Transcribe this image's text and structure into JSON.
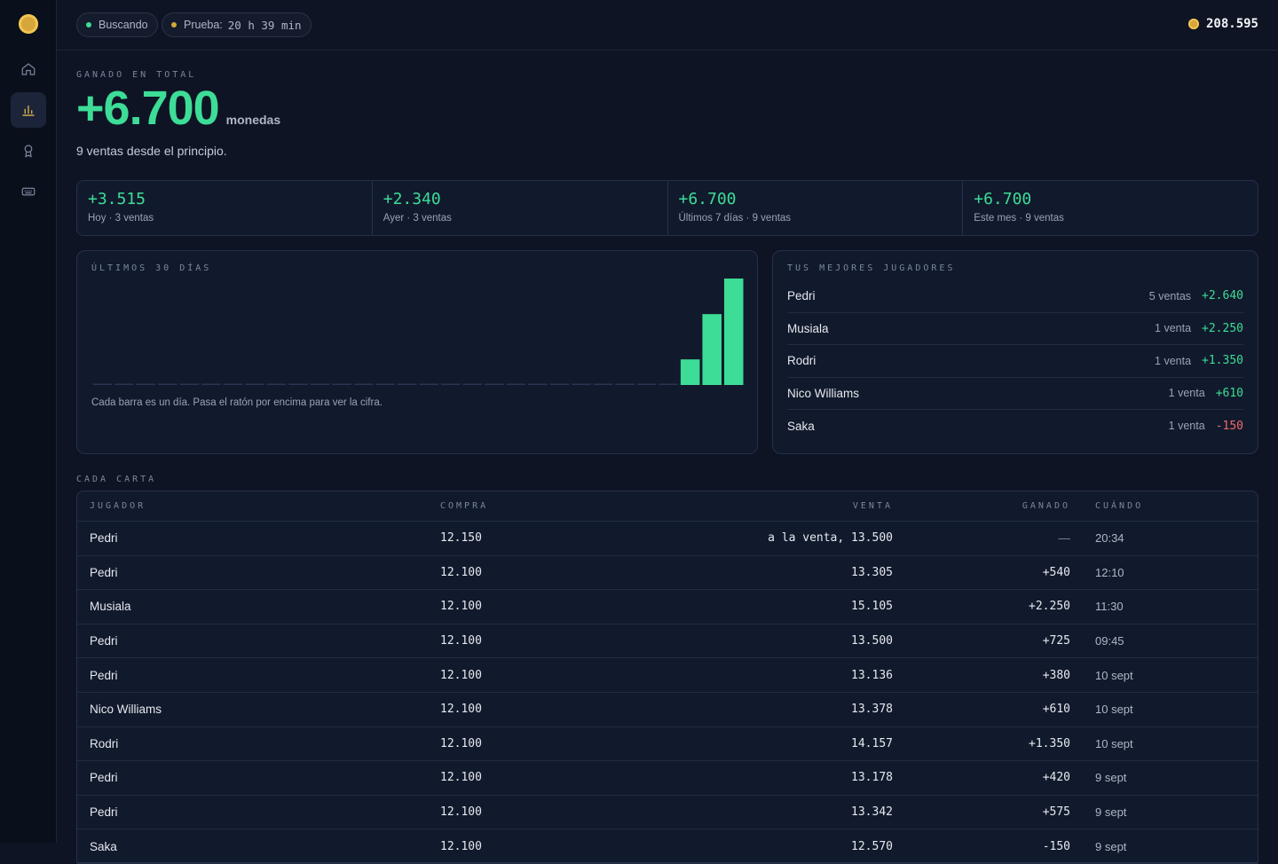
{
  "topbar": {
    "status_label": "Buscando",
    "status_color": "#3ddc97",
    "trial_label": "Prueba:",
    "trial_time": "20 h 39 min",
    "trial_color": "#d6a63a",
    "balance": "208.595"
  },
  "sidebar": {
    "items": [
      {
        "icon": "home-icon",
        "active": false
      },
      {
        "icon": "bar-chart-icon",
        "active": true
      },
      {
        "icon": "award-icon",
        "active": false
      },
      {
        "icon": "keyboard-icon",
        "active": false
      }
    ]
  },
  "hero": {
    "label": "GANADO EN TOTAL",
    "value": "+6.700",
    "unit": "monedas",
    "subtitle": "9 ventas desde el principio."
  },
  "stats": [
    {
      "value": "+3.515",
      "label": "Hoy · 3 ventas"
    },
    {
      "value": "+2.340",
      "label": "Ayer · 3 ventas"
    },
    {
      "value": "+6.700",
      "label": "Últimos 7 días · 9 ventas"
    },
    {
      "value": "+6.700",
      "label": "Este mes · 9 ventas"
    }
  ],
  "chart_panel": {
    "label": "ÚLTIMOS 30 DÍAS",
    "hint": "Cada barra es un día. Pasa el ratón por encima para ver la cifra."
  },
  "chart_data": {
    "type": "bar",
    "values": [
      0,
      0,
      0,
      0,
      0,
      0,
      0,
      0,
      0,
      0,
      0,
      0,
      0,
      0,
      0,
      0,
      0,
      0,
      0,
      0,
      0,
      0,
      0,
      0,
      0,
      0,
      0,
      845,
      2340,
      3515
    ],
    "ylim": [
      0,
      3515
    ]
  },
  "players_panel": {
    "label": "TUS MEJORES JUGADORES",
    "players": [
      {
        "name": "Pedri",
        "count": "5 ventas",
        "gain": "+2.640",
        "positive": true
      },
      {
        "name": "Musiala",
        "count": "1 venta",
        "gain": "+2.250",
        "positive": true
      },
      {
        "name": "Rodri",
        "count": "1 venta",
        "gain": "+1.350",
        "positive": true
      },
      {
        "name": "Nico Williams",
        "count": "1 venta",
        "gain": "+610",
        "positive": true
      },
      {
        "name": "Saka",
        "count": "1 venta",
        "gain": "-150",
        "positive": false
      }
    ]
  },
  "table": {
    "section_label": "CADA CARTA",
    "headers": {
      "player": "JUGADOR",
      "buy": "COMPRA",
      "sell": "VENTA",
      "gain": "GANADO",
      "when": "CUÁNDO"
    },
    "rows": [
      {
        "player": "Pedri",
        "buy": "12.150",
        "sell": "a la venta, 13.500",
        "gain": "—",
        "when": "20:34"
      },
      {
        "player": "Pedri",
        "buy": "12.100",
        "sell": "13.305",
        "gain": "+540",
        "when": "12:10"
      },
      {
        "player": "Musiala",
        "buy": "12.100",
        "sell": "15.105",
        "gain": "+2.250",
        "when": "11:30"
      },
      {
        "player": "Pedri",
        "buy": "12.100",
        "sell": "13.500",
        "gain": "+725",
        "when": "09:45"
      },
      {
        "player": "Pedri",
        "buy": "12.100",
        "sell": "13.136",
        "gain": "+380",
        "when": "10 sept"
      },
      {
        "player": "Nico Williams",
        "buy": "12.100",
        "sell": "13.378",
        "gain": "+610",
        "when": "10 sept"
      },
      {
        "player": "Rodri",
        "buy": "12.100",
        "sell": "14.157",
        "gain": "+1.350",
        "when": "10 sept"
      },
      {
        "player": "Pedri",
        "buy": "12.100",
        "sell": "13.178",
        "gain": "+420",
        "when": "9 sept"
      },
      {
        "player": "Pedri",
        "buy": "12.100",
        "sell": "13.342",
        "gain": "+575",
        "when": "9 sept"
      },
      {
        "player": "Saka",
        "buy": "12.100",
        "sell": "12.570",
        "gain": "-150",
        "when": "9 sept"
      }
    ]
  }
}
